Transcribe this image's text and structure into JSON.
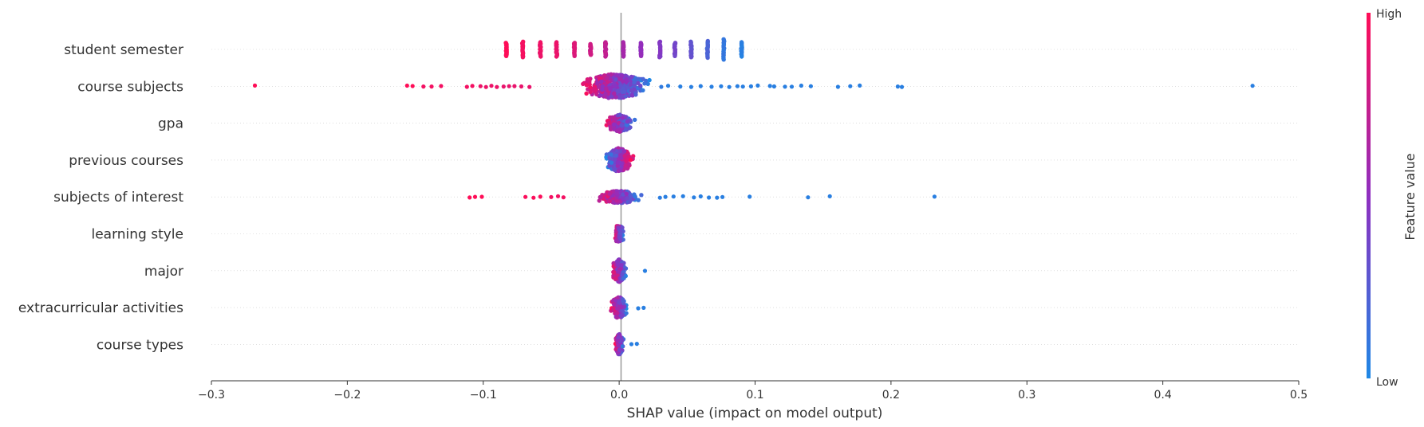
{
  "chart_data": {
    "type": "scatter",
    "subtype": "shap-beeswarm",
    "title": "",
    "xlabel": "SHAP value (impact on model output)",
    "ylabel": "",
    "xlim": [
      -0.3,
      0.5
    ],
    "xticks": [
      -0.3,
      -0.2,
      -0.1,
      0.0,
      0.1,
      0.2,
      0.3,
      0.4,
      0.5
    ],
    "xtick_labels": [
      "−0.3",
      "−0.2",
      "−0.1",
      "0.0",
      "0.1",
      "0.2",
      "0.3",
      "0.4",
      "0.5"
    ],
    "grid": false,
    "colorbar": {
      "title": "Feature value",
      "high_label": "High",
      "low_label": "Low",
      "high_color": "#ff0d57",
      "mid_color": "#8f2fc0",
      "low_color": "#1e88e5"
    },
    "features": [
      "student semester",
      "course subjects",
      "gpa",
      "previous courses",
      "subjects of interest",
      "learning style",
      "major",
      "extracurricular activities",
      "course types"
    ],
    "series": [
      {
        "feature": "student semester",
        "discrete_columns": [
          {
            "x": -0.083,
            "fv": 1.0
          },
          {
            "x": -0.071,
            "fv": 0.96
          },
          {
            "x": -0.058,
            "fv": 0.93
          },
          {
            "x": -0.046,
            "fv": 0.9
          },
          {
            "x": -0.033,
            "fv": 0.85
          },
          {
            "x": -0.021,
            "fv": 0.78
          },
          {
            "x": -0.01,
            "fv": 0.72
          },
          {
            "x": 0.003,
            "fv": 0.6
          },
          {
            "x": 0.016,
            "fv": 0.52
          },
          {
            "x": 0.03,
            "fv": 0.45
          },
          {
            "x": 0.041,
            "fv": 0.38
          },
          {
            "x": 0.053,
            "fv": 0.3
          },
          {
            "x": 0.065,
            "fv": 0.2
          },
          {
            "x": 0.077,
            "fv": 0.1
          },
          {
            "x": 0.09,
            "fv": 0.05
          }
        ],
        "column_heights": [
          0.55,
          0.65,
          0.6,
          0.6,
          0.55,
          0.45,
          0.6,
          0.6,
          0.55,
          0.65,
          0.55,
          0.65,
          0.7,
          0.85,
          0.6
        ]
      },
      {
        "feature": "course subjects",
        "points": [
          [
            -0.268,
            1
          ],
          [
            -0.156,
            1
          ],
          [
            -0.152,
            1
          ],
          [
            -0.144,
            0.95
          ],
          [
            -0.138,
            0.95
          ],
          [
            -0.131,
            0.95
          ],
          [
            -0.112,
            0.95
          ],
          [
            -0.108,
            0.95
          ],
          [
            -0.102,
            0.92
          ],
          [
            -0.098,
            0.92
          ],
          [
            -0.094,
            0.92
          ],
          [
            -0.09,
            0.92
          ],
          [
            -0.085,
            0.9
          ],
          [
            -0.081,
            0.9
          ],
          [
            -0.077,
            0.9
          ],
          [
            -0.072,
            0.9
          ],
          [
            -0.066,
            0.9
          ],
          [
            0.031,
            0.08
          ],
          [
            0.036,
            0.05
          ],
          [
            0.045,
            0.05
          ],
          [
            0.053,
            0.05
          ],
          [
            0.06,
            0.05
          ],
          [
            0.068,
            0.05
          ],
          [
            0.075,
            0.05
          ],
          [
            0.081,
            0.05
          ],
          [
            0.087,
            0.05
          ],
          [
            0.091,
            0.05
          ],
          [
            0.097,
            0.05
          ],
          [
            0.102,
            0.05
          ],
          [
            0.111,
            0.05
          ],
          [
            0.114,
            0.05
          ],
          [
            0.122,
            0.05
          ],
          [
            0.127,
            0.05
          ],
          [
            0.134,
            0.05
          ],
          [
            0.141,
            0.05
          ],
          [
            0.161,
            0.05
          ],
          [
            0.17,
            0.05
          ],
          [
            0.177,
            0.05
          ],
          [
            0.205,
            0.05
          ],
          [
            0.208,
            0.05
          ],
          [
            0.466,
            0.05
          ]
        ],
        "dense": {
          "min": -0.066,
          "max": 0.03,
          "center": -0.003,
          "spread": 0.9,
          "n": 420,
          "direction": -1
        }
      },
      {
        "feature": "gpa",
        "dense": {
          "min": -0.02,
          "max": 0.021,
          "center": 0.0,
          "spread": 0.6,
          "n": 240,
          "direction": -1
        }
      },
      {
        "feature": "previous courses",
        "dense": {
          "min": -0.02,
          "max": 0.02,
          "center": 0.0,
          "spread": 0.85,
          "n": 320,
          "direction": 1
        }
      },
      {
        "feature": "subjects of interest",
        "points": [
          [
            -0.11,
            1
          ],
          [
            -0.106,
            1
          ],
          [
            -0.101,
            1
          ],
          [
            -0.069,
            0.98
          ],
          [
            -0.063,
            0.98
          ],
          [
            -0.058,
            0.98
          ],
          [
            -0.05,
            0.95
          ],
          [
            -0.045,
            0.95
          ],
          [
            -0.041,
            0.95
          ],
          [
            0.03,
            0.06
          ],
          [
            0.034,
            0.05
          ],
          [
            0.04,
            0.05
          ],
          [
            0.047,
            0.05
          ],
          [
            0.055,
            0.05
          ],
          [
            0.06,
            0.05
          ],
          [
            0.066,
            0.05
          ],
          [
            0.072,
            0.05
          ],
          [
            0.076,
            0.05
          ],
          [
            0.096,
            0.05
          ],
          [
            0.139,
            0.05
          ],
          [
            0.155,
            0.05
          ],
          [
            0.232,
            0.05
          ]
        ],
        "dense": {
          "min": -0.038,
          "max": 0.03,
          "center": 0.0,
          "spread": 0.45,
          "n": 240,
          "direction": -1
        }
      },
      {
        "feature": "learning style",
        "dense": {
          "min": -0.006,
          "max": 0.006,
          "center": 0.0,
          "spread": 0.6,
          "n": 160,
          "direction": -1,
          "blocky": true
        }
      },
      {
        "feature": "major",
        "points": [
          [
            0.019,
            0.05
          ]
        ],
        "dense": {
          "min": -0.011,
          "max": 0.012,
          "center": 0.0,
          "spread": 0.8,
          "n": 160,
          "direction": -1
        }
      },
      {
        "feature": "extracurricular activities",
        "points": [
          [
            0.014,
            0.05
          ],
          [
            0.018,
            0.05
          ]
        ],
        "dense": {
          "min": -0.012,
          "max": 0.012,
          "center": 0.0,
          "spread": 0.8,
          "n": 170,
          "direction": -1
        }
      },
      {
        "feature": "course types",
        "points": [
          [
            0.009,
            0.05
          ],
          [
            0.013,
            0.05
          ]
        ],
        "dense": {
          "min": -0.006,
          "max": 0.006,
          "center": 0.0,
          "spread": 0.75,
          "n": 140,
          "direction": -1
        }
      }
    ]
  }
}
